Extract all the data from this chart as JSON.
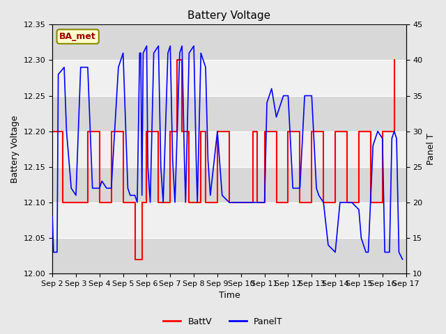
{
  "title": "Battery Voltage",
  "xlabel": "Time",
  "ylabel_left": "Battery Voltage",
  "ylabel_right": "Panel T",
  "ylim_left": [
    12.0,
    12.35
  ],
  "ylim_right": [
    10,
    45
  ],
  "background_color": "#e8e8e8",
  "plot_bg_color": "#e0e0e0",
  "annotation_text": "BA_met",
  "annotation_bg": "#ffffcc",
  "annotation_border": "#888800",
  "annotation_text_color": "#990000",
  "legend_entries": [
    "BattV",
    "PanelT"
  ],
  "batt_color": "red",
  "panel_color": "blue",
  "x_tick_labels": [
    "Sep 2",
    "Sep 3",
    "Sep 4",
    "Sep 5",
    "Sep 6",
    "Sep 7",
    "Sep 8",
    "Sep 9",
    "Sep 10",
    "Sep 11",
    "Sep 12",
    "Sep 13",
    "Sep 14",
    "Sep 15",
    "Sep 16",
    "Sep 17"
  ],
  "stripe_colors": [
    "#d8d8d8",
    "#f0f0f0"
  ],
  "yticks_left": [
    12.0,
    12.05,
    12.1,
    12.15,
    12.2,
    12.25,
    12.3,
    12.35
  ],
  "yticks_right": [
    10,
    15,
    20,
    25,
    30,
    35,
    40,
    45
  ],
  "batt_data": [
    [
      0.0,
      12.2
    ],
    [
      0.45,
      12.2
    ],
    [
      0.45,
      12.1
    ],
    [
      1.5,
      12.1
    ],
    [
      1.5,
      12.2
    ],
    [
      2.0,
      12.2
    ],
    [
      2.0,
      12.1
    ],
    [
      2.5,
      12.1
    ],
    [
      2.5,
      12.2
    ],
    [
      3.0,
      12.2
    ],
    [
      3.0,
      12.1
    ],
    [
      3.5,
      12.1
    ],
    [
      3.5,
      12.02
    ],
    [
      3.8,
      12.02
    ],
    [
      3.8,
      12.1
    ],
    [
      4.0,
      12.1
    ],
    [
      4.0,
      12.2
    ],
    [
      4.5,
      12.2
    ],
    [
      4.5,
      12.1
    ],
    [
      5.0,
      12.1
    ],
    [
      5.0,
      12.2
    ],
    [
      5.3,
      12.2
    ],
    [
      5.3,
      12.3
    ],
    [
      5.5,
      12.3
    ],
    [
      5.5,
      12.2
    ],
    [
      5.8,
      12.2
    ],
    [
      5.8,
      12.1
    ],
    [
      6.3,
      12.1
    ],
    [
      6.3,
      12.2
    ],
    [
      6.5,
      12.2
    ],
    [
      6.5,
      12.1
    ],
    [
      7.0,
      12.1
    ],
    [
      7.0,
      12.2
    ],
    [
      7.5,
      12.2
    ],
    [
      7.5,
      12.1
    ],
    [
      8.5,
      12.1
    ],
    [
      8.5,
      12.2
    ],
    [
      8.7,
      12.2
    ],
    [
      8.7,
      12.1
    ],
    [
      9.0,
      12.1
    ],
    [
      9.0,
      12.2
    ],
    [
      9.5,
      12.2
    ],
    [
      9.5,
      12.1
    ],
    [
      10.0,
      12.1
    ],
    [
      10.0,
      12.2
    ],
    [
      10.5,
      12.2
    ],
    [
      10.5,
      12.1
    ],
    [
      11.0,
      12.1
    ],
    [
      11.0,
      12.2
    ],
    [
      11.5,
      12.2
    ],
    [
      11.5,
      12.1
    ],
    [
      12.0,
      12.1
    ],
    [
      12.0,
      12.2
    ],
    [
      12.5,
      12.2
    ],
    [
      12.5,
      12.1
    ],
    [
      13.0,
      12.1
    ],
    [
      13.0,
      12.2
    ],
    [
      13.5,
      12.2
    ],
    [
      13.5,
      12.1
    ],
    [
      14.0,
      12.1
    ],
    [
      14.0,
      12.2
    ],
    [
      14.5,
      12.2
    ],
    [
      14.5,
      12.3
    ]
  ],
  "panel_data": [
    [
      0.0,
      18
    ],
    [
      0.05,
      13
    ],
    [
      0.2,
      13
    ],
    [
      0.25,
      38
    ],
    [
      0.5,
      39
    ],
    [
      0.6,
      30
    ],
    [
      0.8,
      22
    ],
    [
      1.0,
      21
    ],
    [
      1.2,
      39
    ],
    [
      1.5,
      39
    ],
    [
      1.7,
      22
    ],
    [
      2.0,
      22
    ],
    [
      2.1,
      23
    ],
    [
      2.3,
      22
    ],
    [
      2.5,
      22
    ],
    [
      2.8,
      39
    ],
    [
      3.0,
      41
    ],
    [
      3.2,
      22
    ],
    [
      3.3,
      21
    ],
    [
      3.5,
      21
    ],
    [
      3.6,
      20
    ],
    [
      3.7,
      41
    ],
    [
      3.75,
      41
    ],
    [
      3.8,
      21
    ],
    [
      3.85,
      41
    ],
    [
      4.0,
      42
    ],
    [
      4.05,
      25
    ],
    [
      4.15,
      20
    ],
    [
      4.3,
      41
    ],
    [
      4.5,
      42
    ],
    [
      4.6,
      25
    ],
    [
      4.7,
      20
    ],
    [
      4.9,
      41
    ],
    [
      5.0,
      42
    ],
    [
      5.1,
      26
    ],
    [
      5.2,
      20
    ],
    [
      5.4,
      41
    ],
    [
      5.5,
      42
    ],
    [
      5.6,
      26
    ],
    [
      5.65,
      20
    ],
    [
      5.8,
      41
    ],
    [
      6.0,
      42
    ],
    [
      6.1,
      26
    ],
    [
      6.15,
      20
    ],
    [
      6.3,
      41
    ],
    [
      6.5,
      39
    ],
    [
      6.6,
      26
    ],
    [
      6.7,
      21
    ],
    [
      7.0,
      30
    ],
    [
      7.2,
      21
    ],
    [
      7.5,
      20
    ],
    [
      8.0,
      20
    ],
    [
      8.3,
      20
    ],
    [
      8.5,
      20
    ],
    [
      8.7,
      20
    ],
    [
      9.0,
      20
    ],
    [
      9.1,
      34
    ],
    [
      9.3,
      36
    ],
    [
      9.5,
      32
    ],
    [
      9.8,
      35
    ],
    [
      10.0,
      35
    ],
    [
      10.2,
      22
    ],
    [
      10.5,
      22
    ],
    [
      10.7,
      35
    ],
    [
      11.0,
      35
    ],
    [
      11.2,
      22
    ],
    [
      11.3,
      21
    ],
    [
      11.5,
      20
    ],
    [
      11.7,
      14
    ],
    [
      12.0,
      13
    ],
    [
      12.2,
      20
    ],
    [
      12.5,
      20
    ],
    [
      12.7,
      20
    ],
    [
      13.0,
      19
    ],
    [
      13.1,
      15
    ],
    [
      13.3,
      13
    ],
    [
      13.4,
      13
    ],
    [
      13.6,
      28
    ],
    [
      13.8,
      30
    ],
    [
      14.0,
      29
    ],
    [
      14.1,
      13
    ],
    [
      14.3,
      13
    ],
    [
      14.4,
      29
    ],
    [
      14.5,
      30
    ],
    [
      14.6,
      29
    ],
    [
      14.7,
      13
    ],
    [
      14.85,
      12
    ]
  ]
}
